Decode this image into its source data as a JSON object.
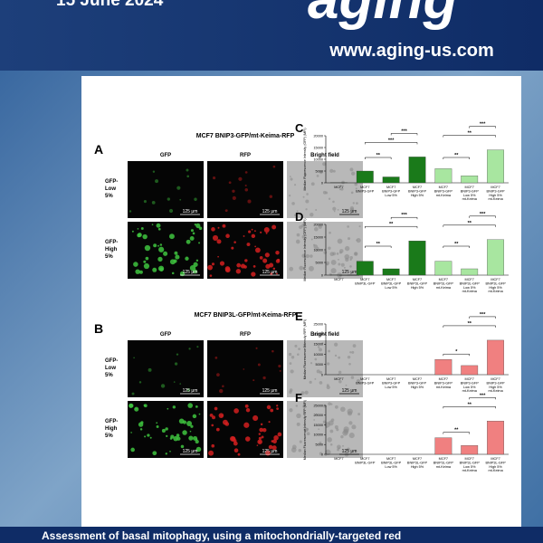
{
  "header": {
    "date": "15 June 2024",
    "logo": "aging",
    "url": "www.aging-us.com"
  },
  "figure": {
    "panels": [
      {
        "letter": "A",
        "title": "MCF7 BNIP3-GFP/mt-Keima-RFP",
        "columns": [
          "GFP",
          "RFP",
          "Bright field"
        ],
        "rows": [
          [
            "GFP-",
            "Low",
            "5%"
          ],
          [
            "GFP-",
            "High",
            "5%"
          ]
        ],
        "scale": "125 μm"
      },
      {
        "letter": "B",
        "title": "MCF7 BNIP3L-GFP/mt-Keima-RFP",
        "columns": [
          "GFP",
          "RFP",
          "Bright field"
        ],
        "rows": [
          [
            "GFP-",
            "Low",
            "5%"
          ],
          [
            "GFP-",
            "High",
            "5%"
          ]
        ],
        "scale": "125 μm"
      }
    ],
    "charts": [
      {
        "type": "bar",
        "letter": "C",
        "ylabel": "Median Fluorescence Intensity (GFP) (MFI)",
        "ylim": [
          0,
          20000
        ],
        "yticks": [
          0,
          5000,
          10000,
          15000,
          20000
        ],
        "categories": [
          [
            "MCF7"
          ],
          [
            "MCF7",
            "BNIP3-GFP"
          ],
          [
            "MCF7",
            "BNIP3-GFP",
            "Low 5%"
          ],
          [
            "MCF7",
            "BNIP3-GFP",
            "High 5%"
          ],
          [
            "MCF7",
            "BNIP3-GFP",
            "mt-Keima"
          ],
          [
            "MCF7",
            "BNIP3-GFP",
            "Low 5%",
            "mt-Keima"
          ],
          [
            "MCF7",
            "BNIP3-GFP",
            "High 5%",
            "mt-Keima"
          ]
        ],
        "values": [
          100,
          5000,
          2500,
          11000,
          6000,
          3000,
          14000
        ],
        "colors": [
          "#1a7a1a",
          "#1a7a1a",
          "#1a7a1a",
          "#1a7a1a",
          "#a8e6a0",
          "#a8e6a0",
          "#a8e6a0"
        ],
        "significance": [
          "**",
          "***",
          "***",
          "**",
          "**",
          "***"
        ]
      },
      {
        "type": "bar",
        "letter": "D",
        "ylabel": "Median Fluorescence Intensity (GFP) (MFI)",
        "ylim": [
          0,
          20000
        ],
        "yticks": [
          0,
          5000,
          10000,
          15000,
          20000
        ],
        "categories": [
          [
            "MCF7"
          ],
          [
            "MCF7",
            "BNIP3L-GFP"
          ],
          [
            "MCF7",
            "BNIP3L-GFP",
            "Low 5%"
          ],
          [
            "MCF7",
            "BNIP3L-GFP",
            "High 5%"
          ],
          [
            "MCF7",
            "BNIP3L-GFP",
            "mt-Keima"
          ],
          [
            "MCF7",
            "BNIP3L-GFP",
            "Low 5%",
            "mt-Keima"
          ],
          [
            "MCF7",
            "BNIP3L-GFP",
            "High 5%",
            "mt-Keima"
          ]
        ],
        "values": [
          100,
          5500,
          2500,
          13500,
          5500,
          2500,
          14000
        ],
        "colors": [
          "#1a7a1a",
          "#1a7a1a",
          "#1a7a1a",
          "#1a7a1a",
          "#a8e6a0",
          "#a8e6a0",
          "#a8e6a0"
        ],
        "significance": [
          "**",
          "**",
          "***",
          "**",
          "**",
          "***"
        ]
      },
      {
        "type": "bar",
        "letter": "E",
        "ylabel": "Median Fluorescence Intensity RFP (MFI)",
        "ylim": [
          0,
          25000
        ],
        "yticks": [
          0,
          5000,
          10000,
          15000,
          20000,
          25000
        ],
        "categories": [
          [
            "MCF7"
          ],
          [
            "MCF7",
            "BNIP3-GFP"
          ],
          [
            "MCF7",
            "BNIP3-GFP",
            "Low 5%"
          ],
          [
            "MCF7",
            "BNIP3-GFP",
            "High 5%"
          ],
          [
            "MCF7",
            "BNIP3-GFP",
            "mt-Keima"
          ],
          [
            "MCF7",
            "BNIP3-GFP",
            "Low 5%",
            "mt-Keima"
          ],
          [
            "MCF7",
            "BNIP3-GFP",
            "High 5%",
            "mt-Keima"
          ]
        ],
        "values": [
          0,
          0,
          0,
          0,
          7500,
          4500,
          17000
        ],
        "colors": [
          "#f08080",
          "#f08080",
          "#f08080",
          "#f08080",
          "#f08080",
          "#f08080",
          "#f08080"
        ],
        "significance": [
          "*",
          "**",
          "***"
        ]
      },
      {
        "type": "bar",
        "letter": "F",
        "ylabel": "Median Fluorescence Intensity RFP (MFI)",
        "ylim": [
          0,
          25000
        ],
        "yticks": [
          0,
          5000,
          10000,
          15000,
          20000,
          25000
        ],
        "categories": [
          [
            "MCF7"
          ],
          [
            "MCF7",
            "BNIP3L-GFP"
          ],
          [
            "MCF7",
            "BNIP3L-GFP",
            "Low 5%"
          ],
          [
            "MCF7",
            "BNIP3L-GFP",
            "High 5%"
          ],
          [
            "MCF7",
            "BNIP3L-GFP",
            "mt-Keima"
          ],
          [
            "MCF7",
            "BNIP3L-GFP",
            "Low 5%",
            "mt-Keima"
          ],
          [
            "MCF7",
            "BNIP3L-GFP",
            "High 5%",
            "mt-Keima"
          ]
        ],
        "values": [
          0,
          0,
          0,
          0,
          8500,
          4500,
          17000
        ],
        "colors": [
          "#f08080",
          "#f08080",
          "#f08080",
          "#f08080",
          "#f08080",
          "#f08080",
          "#f08080"
        ],
        "significance": [
          "**",
          "**",
          "***"
        ]
      }
    ]
  },
  "caption": "Assessment of basal mitophagy, using a mitochondrially-targeted red"
}
